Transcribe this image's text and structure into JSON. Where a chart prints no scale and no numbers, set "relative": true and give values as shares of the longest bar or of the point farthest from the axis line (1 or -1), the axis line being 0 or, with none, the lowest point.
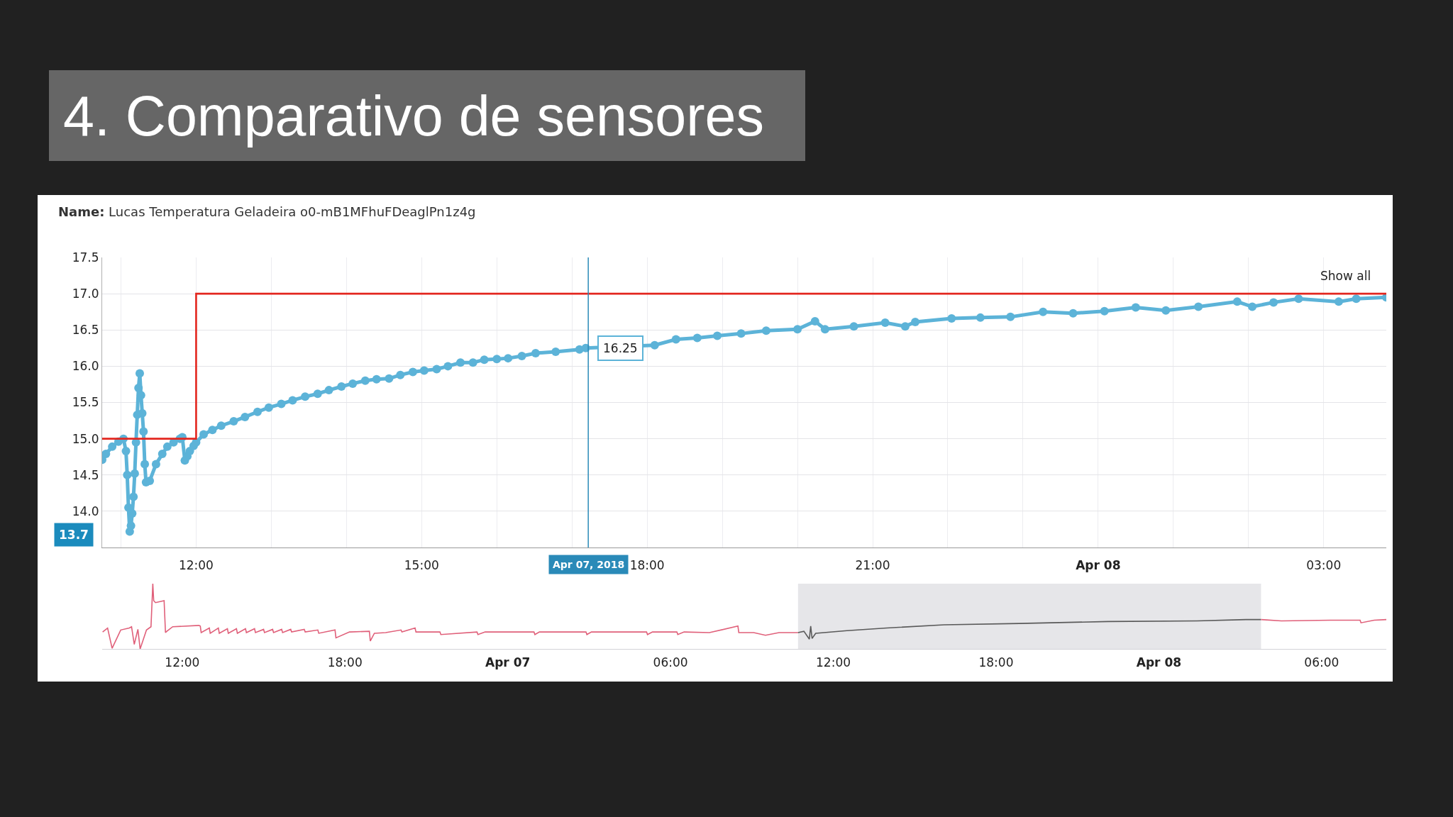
{
  "chart_data": [
    {
      "type": "line",
      "title": "4. Comparativo de sensores",
      "subtitle": "Name: Lucas Temperatura Geladeira o0-mB1MFhuFDeaglPn1z4g",
      "xlim": [
        "2018-04-07T10:45",
        "2018-04-08T03:50"
      ],
      "xticks": [
        {
          "value": "2018-04-07T11:00",
          "label": null
        },
        {
          "value": "2018-04-07T12:00",
          "label": "12:00"
        },
        {
          "value": "2018-04-07T13:00",
          "label": null
        },
        {
          "value": "2018-04-07T14:00",
          "label": null
        },
        {
          "value": "2018-04-07T15:00",
          "label": "15:00"
        },
        {
          "value": "2018-04-07T16:00",
          "label": null
        },
        {
          "value": "2018-04-07T17:00",
          "label": null
        },
        {
          "value": "2018-04-07T18:00",
          "label": "18:00"
        },
        {
          "value": "2018-04-07T19:00",
          "label": null
        },
        {
          "value": "2018-04-07T20:00",
          "label": null
        },
        {
          "value": "2018-04-07T21:00",
          "label": "21:00"
        },
        {
          "value": "2018-04-07T22:00",
          "label": null
        },
        {
          "value": "2018-04-07T23:00",
          "label": null
        },
        {
          "value": "2018-04-08T00:00",
          "label": "Apr 08"
        },
        {
          "value": "2018-04-08T01:00",
          "label": null
        },
        {
          "value": "2018-04-08T02:00",
          "label": null
        },
        {
          "value": "2018-04-08T03:00",
          "label": "03:00"
        }
      ],
      "ylim": [
        13.5,
        17.5
      ],
      "yticks": [
        {
          "value": 13.5,
          "label": null
        },
        {
          "value": 14,
          "label": "14.0"
        },
        {
          "value": 14.5,
          "label": "14.5"
        },
        {
          "value": 15,
          "label": "15.0"
        },
        {
          "value": 15.5,
          "label": "15.5"
        },
        {
          "value": 16,
          "label": "16.0"
        },
        {
          "value": 16.5,
          "label": "16.5"
        },
        {
          "value": 17,
          "label": "17.0"
        },
        {
          "value": 17.5,
          "label": "17.5"
        }
      ],
      "grid": true,
      "marker": "circle",
      "series": [
        {
          "type": "line",
          "color": "#5cb3d8",
          "x": [
            "2018-04-07T10:45",
            "2018-04-07T10:48",
            "2018-04-07T10:53",
            "2018-04-07T10:58",
            "2018-04-07T11:02",
            "2018-04-07T11:04",
            "2018-04-07T11:05",
            "2018-04-07T11:06",
            "2018-04-07T11:07",
            "2018-04-07T11:08",
            "2018-04-07T11:09",
            "2018-04-07T11:10",
            "2018-04-07T11:11",
            "2018-04-07T11:12",
            "2018-04-07T11:13",
            "2018-04-07T11:14",
            "2018-04-07T11:15",
            "2018-04-07T11:16",
            "2018-04-07T11:17",
            "2018-04-07T11:18",
            "2018-04-07T11:19",
            "2018-04-07T11:20",
            "2018-04-07T11:23",
            "2018-04-07T11:28",
            "2018-04-07T11:33",
            "2018-04-07T11:37",
            "2018-04-07T11:42",
            "2018-04-07T11:47",
            "2018-04-07T11:49",
            "2018-04-07T11:51",
            "2018-04-07T11:53",
            "2018-04-07T11:55",
            "2018-04-07T11:58",
            "2018-04-07T12:00",
            "2018-04-07T12:06",
            "2018-04-07T12:13",
            "2018-04-07T12:20",
            "2018-04-07T12:30",
            "2018-04-07T12:39",
            "2018-04-07T12:49",
            "2018-04-07T12:58",
            "2018-04-07T13:08",
            "2018-04-07T13:17",
            "2018-04-07T13:27",
            "2018-04-07T13:37",
            "2018-04-07T13:46",
            "2018-04-07T13:56",
            "2018-04-07T14:05",
            "2018-04-07T14:15",
            "2018-04-07T14:24",
            "2018-04-07T14:34",
            "2018-04-07T14:43",
            "2018-04-07T14:53",
            "2018-04-07T15:02",
            "2018-04-07T15:12",
            "2018-04-07T15:21",
            "2018-04-07T15:31",
            "2018-04-07T15:41",
            "2018-04-07T15:50",
            "2018-04-07T16:00",
            "2018-04-07T16:09",
            "2018-04-07T16:20",
            "2018-04-07T16:31",
            "2018-04-07T16:47",
            "2018-04-07T17:06",
            "2018-04-07T17:11",
            "2018-04-07T18:06",
            "2018-04-07T18:23",
            "2018-04-07T18:40",
            "2018-04-07T18:56",
            "2018-04-07T19:15",
            "2018-04-07T19:35",
            "2018-04-07T20:00",
            "2018-04-07T20:14",
            "2018-04-07T20:22",
            "2018-04-07T20:45",
            "2018-04-07T21:10",
            "2018-04-07T21:26",
            "2018-04-07T21:34",
            "2018-04-07T22:03",
            "2018-04-07T22:26",
            "2018-04-07T22:50",
            "2018-04-07T23:16",
            "2018-04-07T23:40",
            "2018-04-08T00:05",
            "2018-04-08T00:30",
            "2018-04-08T00:54",
            "2018-04-08T01:20",
            "2018-04-08T01:51",
            "2018-04-08T02:03",
            "2018-04-08T02:20",
            "2018-04-08T02:40",
            "2018-04-08T03:12",
            "2018-04-08T03:26",
            "2018-04-08T03:50"
          ],
          "values": [
            14.71,
            14.79,
            14.89,
            14.96,
            15.0,
            14.83,
            14.5,
            14.05,
            13.72,
            13.8,
            13.97,
            14.2,
            14.52,
            14.95,
            15.33,
            15.7,
            15.9,
            15.6,
            15.35,
            15.1,
            14.65,
            14.4,
            14.42,
            14.65,
            14.79,
            14.89,
            14.95,
            15.0,
            15.02,
            14.7,
            14.76,
            14.83,
            14.9,
            14.95,
            15.06,
            15.12,
            15.18,
            15.24,
            15.3,
            15.37,
            15.43,
            15.48,
            15.53,
            15.58,
            15.62,
            15.67,
            15.72,
            15.76,
            15.8,
            15.82,
            15.83,
            15.88,
            15.92,
            15.94,
            15.96,
            16.0,
            16.05,
            16.05,
            16.09,
            16.1,
            16.11,
            16.14,
            16.18,
            16.2,
            16.23,
            16.25,
            16.29,
            16.37,
            16.39,
            16.42,
            16.45,
            16.49,
            16.51,
            16.62,
            16.51,
            16.55,
            16.6,
            16.55,
            16.61,
            16.66,
            16.67,
            16.68,
            16.75,
            16.73,
            16.76,
            16.81,
            16.77,
            16.82,
            16.89,
            16.82,
            16.88,
            16.93,
            16.89,
            16.93,
            16.95
          ]
        },
        {
          "type": "step",
          "color": "#e3261e",
          "marker": "none",
          "x": [
            "2018-04-07T10:45",
            "2018-04-07T12:00",
            "2018-04-08T03:50"
          ],
          "values": [
            15,
            17,
            17
          ]
        }
      ],
      "ref_lines": [
        {
          "axis": "x",
          "value": "2018-04-07T17:13",
          "label": "Apr 07, 2018",
          "color": "#2a8ab8"
        }
      ],
      "annotations": [
        {
          "text": "16.25",
          "x": "2018-04-07T17:11",
          "y": 16.25
        },
        "Show all",
        "13.7"
      ]
    },
    {
      "type": "line",
      "relative": true,
      "xlim": [
        "2018-04-06T09:03",
        "2018-04-08T08:23"
      ],
      "xticks": [
        {
          "value": "2018-04-06T12:00",
          "label": "12:00"
        },
        {
          "value": "2018-04-06T18:00",
          "label": "18:00"
        },
        {
          "value": "2018-04-07T00:00",
          "label": "Apr 07"
        },
        {
          "value": "2018-04-07T06:00",
          "label": "06:00"
        },
        {
          "value": "2018-04-07T12:00",
          "label": "12:00"
        },
        {
          "value": "2018-04-07T18:00",
          "label": "18:00"
        },
        {
          "value": "2018-04-08T00:00",
          "label": "Apr 08"
        },
        {
          "value": "2018-04-08T06:00",
          "label": "06:00"
        }
      ],
      "series": [
        {
          "color": "#e0607a",
          "x": [
            "2018-04-06T09:04",
            "2018-04-06T09:15",
            "2018-04-06T09:25",
            "2018-04-06T09:44",
            "2018-04-06T10:03",
            "2018-04-06T10:08",
            "2018-04-06T10:14",
            "2018-04-06T10:22",
            "2018-04-06T10:27",
            "2018-04-06T10:41",
            "2018-04-06T10:51",
            "2018-04-06T10:55",
            "2018-04-06T10:57",
            "2018-04-06T11:01",
            "2018-04-06T11:20",
            "2018-04-06T11:23",
            "2018-04-06T11:26",
            "2018-04-06T11:39",
            "2018-04-06T12:37",
            "2018-04-06T12:40",
            "2018-04-06T12:42",
            "2018-04-06T13:00",
            "2018-04-06T13:02",
            "2018-04-06T13:20",
            "2018-04-06T13:22",
            "2018-04-06T13:40",
            "2018-04-06T13:42",
            "2018-04-06T14:00",
            "2018-04-06T14:02",
            "2018-04-06T14:20",
            "2018-04-06T14:22",
            "2018-04-06T14:40",
            "2018-04-06T14:42",
            "2018-04-06T15:00",
            "2018-04-06T15:02",
            "2018-04-06T15:20",
            "2018-04-06T15:22",
            "2018-04-06T15:40",
            "2018-04-06T15:42",
            "2018-04-06T16:00",
            "2018-04-06T16:02",
            "2018-04-06T16:30",
            "2018-04-06T16:32",
            "2018-04-06T17:00",
            "2018-04-06T17:02",
            "2018-04-06T17:38",
            "2018-04-06T17:40",
            "2018-04-06T18:10",
            "2018-04-06T18:54",
            "2018-04-06T18:56",
            "2018-04-06T19:05",
            "2018-04-06T19:30",
            "2018-04-06T20:04",
            "2018-04-06T20:06",
            "2018-04-06T20:35",
            "2018-04-06T20:37",
            "2018-04-06T21:30",
            "2018-04-06T21:32",
            "2018-04-06T22:52",
            "2018-04-06T22:54",
            "2018-04-06T23:10",
            "2018-04-07T00:58",
            "2018-04-07T01:00",
            "2018-04-07T01:10",
            "2018-04-07T02:53",
            "2018-04-07T02:55",
            "2018-04-07T03:05",
            "2018-04-07T05:07",
            "2018-04-07T05:09",
            "2018-04-07T05:20",
            "2018-04-07T06:14",
            "2018-04-07T06:16",
            "2018-04-07T06:30",
            "2018-04-07T07:26",
            "2018-04-07T08:29",
            "2018-04-07T08:31",
            "2018-04-07T09:04",
            "2018-04-07T09:30",
            "2018-04-07T10:00",
            "2018-04-07T10:42"
          ],
          "values": [
            0.26,
            0.32,
            0.01,
            0.29,
            0.32,
            0.34,
            0.07,
            0.3,
            0.0,
            0.29,
            0.34,
            1.0,
            0.74,
            0.71,
            0.74,
            0.25,
            0.27,
            0.34,
            0.36,
            0.35,
            0.25,
            0.32,
            0.24,
            0.32,
            0.24,
            0.31,
            0.24,
            0.31,
            0.24,
            0.31,
            0.25,
            0.31,
            0.25,
            0.3,
            0.25,
            0.3,
            0.25,
            0.3,
            0.25,
            0.3,
            0.26,
            0.3,
            0.26,
            0.29,
            0.24,
            0.29,
            0.17,
            0.26,
            0.27,
            0.12,
            0.24,
            0.25,
            0.29,
            0.26,
            0.32,
            0.26,
            0.26,
            0.22,
            0.26,
            0.22,
            0.26,
            0.26,
            0.22,
            0.26,
            0.26,
            0.22,
            0.26,
            0.26,
            0.22,
            0.26,
            0.26,
            0.22,
            0.26,
            0.25,
            0.35,
            0.25,
            0.25,
            0.21,
            0.25,
            0.25
          ]
        },
        {
          "color": "#5a5a5a",
          "x": [
            "2018-04-07T10:42",
            "2018-04-07T10:55",
            "2018-04-07T11:07",
            "2018-04-07T11:10",
            "2018-04-07T11:13",
            "2018-04-07T11:21",
            "2018-04-07T12:30",
            "2018-04-07T13:58",
            "2018-04-07T16:05",
            "2018-04-07T18:52",
            "2018-04-07T22:08",
            "2018-04-08T01:24",
            "2018-04-08T03:12",
            "2018-04-08T03:46"
          ],
          "values": [
            0.25,
            0.27,
            0.15,
            0.35,
            0.16,
            0.24,
            0.28,
            0.32,
            0.37,
            0.39,
            0.42,
            0.43,
            0.45,
            0.45
          ]
        },
        {
          "color": "#e0607a",
          "x": [
            "2018-04-08T03:46",
            "2018-04-08T04:31",
            "2018-04-08T06:19",
            "2018-04-08T07:25",
            "2018-04-08T07:27",
            "2018-04-08T07:56",
            "2018-04-08T08:23"
          ],
          "values": [
            0.45,
            0.43,
            0.44,
            0.44,
            0.4,
            0.44,
            0.45
          ]
        }
      ],
      "bands": [
        {
          "axis": "x",
          "from": "2018-04-07T10:42",
          "to": "2018-04-08T03:46",
          "color": "#e6e6e9"
        }
      ]
    }
  ]
}
